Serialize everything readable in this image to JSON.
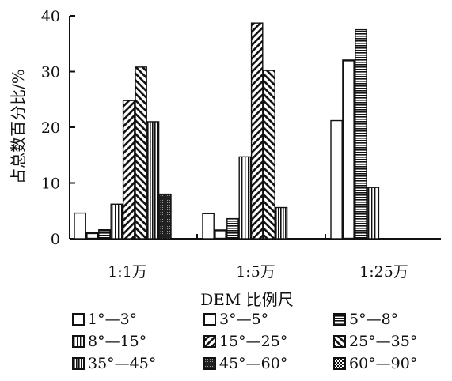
{
  "chart_data": {
    "type": "bar",
    "xlabel": "DEM 比例尺",
    "ylabel": "占总数百分比/%",
    "ylim": [
      0,
      40
    ],
    "yticks": [
      "0",
      "10",
      "20",
      "30",
      "40"
    ],
    "grid": false,
    "legend_position": "bottom",
    "categories": [
      "1:1万",
      "1:5万",
      "1:25万"
    ],
    "series": [
      {
        "name": "1°—3°",
        "pattern": "white",
        "values": [
          4.6,
          4.5,
          21.2
        ]
      },
      {
        "name": "3°—5°",
        "pattern": "white-border",
        "values": [
          1.0,
          1.5,
          32.0
        ]
      },
      {
        "name": "5°—8°",
        "pattern": "hstripe-dense",
        "values": [
          1.6,
          3.6,
          37.5
        ]
      },
      {
        "name": "8°—15°",
        "pattern": "vstripe",
        "values": [
          6.2,
          14.7,
          9.2
        ]
      },
      {
        "name": "15°—25°",
        "pattern": "diag-back",
        "values": [
          24.8,
          38.7,
          0
        ]
      },
      {
        "name": "25°—35°",
        "pattern": "diag-fwd",
        "values": [
          30.8,
          30.2,
          0
        ]
      },
      {
        "name": "35°—45°",
        "pattern": "vstripe-dense",
        "values": [
          21.0,
          5.6,
          0
        ]
      },
      {
        "name": "45°—60°",
        "pattern": "dots",
        "values": [
          8.0,
          0,
          0
        ]
      },
      {
        "name": "60°—90°",
        "pattern": "check",
        "values": [
          0,
          0,
          0
        ]
      }
    ]
  }
}
